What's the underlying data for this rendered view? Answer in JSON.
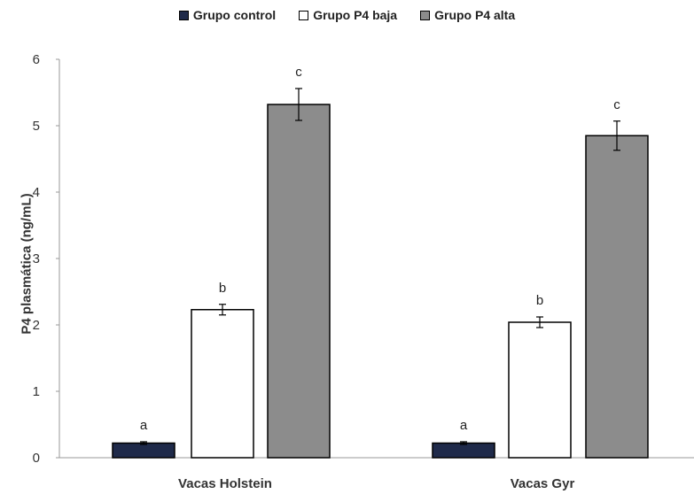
{
  "chart_data": {
    "type": "bar",
    "categories": [
      "Vacas Holstein",
      "Vacas Gyr"
    ],
    "series": [
      {
        "name": "Grupo control",
        "color": "#1f2a4a",
        "values": [
          0.22,
          0.22
        ],
        "errors": [
          0.02,
          0.02
        ],
        "letters": [
          "a",
          "a"
        ]
      },
      {
        "name": "Grupo P4 baja",
        "color": "#ffffff",
        "values": [
          2.23,
          2.04
        ],
        "errors": [
          0.08,
          0.08
        ],
        "letters": [
          "b",
          "b"
        ]
      },
      {
        "name": "Grupo P4 alta",
        "color": "#8c8c8c",
        "values": [
          5.32,
          4.85
        ],
        "errors": [
          0.24,
          0.22
        ],
        "letters": [
          "c",
          "c"
        ]
      }
    ],
    "ylabel": "P4 plasmática (ng/mL)",
    "xlabel": "",
    "ylim": [
      0,
      6
    ],
    "yticks": [
      "0",
      "1",
      "2",
      "3",
      "4",
      "5",
      "6"
    ],
    "grid": false,
    "legend_position": "top"
  }
}
